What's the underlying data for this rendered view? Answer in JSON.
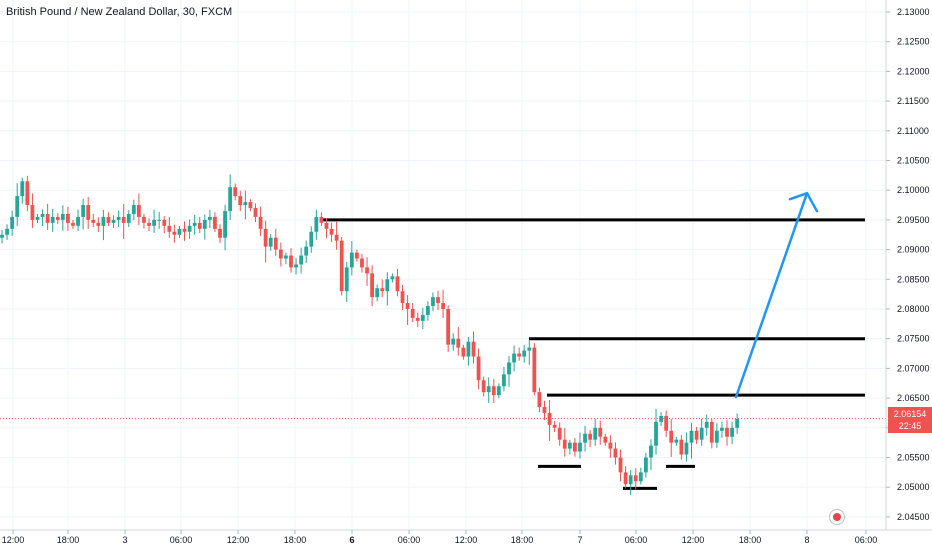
{
  "header": {
    "title": "British Pound / New Zealand Dollar, 30, FXCM"
  },
  "price_badge": {
    "price": "2.06154",
    "countdown": "22:45"
  },
  "colors": {
    "up": "#26a69a",
    "down": "#ef5350",
    "line": "#000000",
    "arrow": "#2196f3",
    "price_line": "#ef5350"
  },
  "chart_data": {
    "type": "candlestick",
    "symbol": "GBPNZD",
    "timeframe": "30",
    "source": "FXCM",
    "y_ticks": [
      "2.13000",
      "2.12500",
      "2.12000",
      "2.11500",
      "2.11000",
      "2.10500",
      "2.10000",
      "2.09500",
      "2.09000",
      "2.08500",
      "2.08000",
      "2.07500",
      "2.07000",
      "2.06500",
      "2.06000",
      "2.05500",
      "2.05000",
      "2.04500"
    ],
    "ylim": [
      2.043,
      2.133
    ],
    "x_ticks": [
      {
        "label": "12:00",
        "bold": false
      },
      {
        "label": "18:00",
        "bold": false
      },
      {
        "label": "3",
        "bold": false
      },
      {
        "label": "06:00",
        "bold": false
      },
      {
        "label": "12:00",
        "bold": false
      },
      {
        "label": "18:00",
        "bold": false
      },
      {
        "label": "6",
        "bold": true
      },
      {
        "label": "06:00",
        "bold": false
      },
      {
        "label": "12:00",
        "bold": false
      },
      {
        "label": "18:00",
        "bold": false
      },
      {
        "label": "7",
        "bold": false
      },
      {
        "label": "06:00",
        "bold": false
      },
      {
        "label": "12:00",
        "bold": false
      },
      {
        "label": "18:00",
        "bold": false
      },
      {
        "label": "8",
        "bold": false
      },
      {
        "label": "06:00",
        "bold": false
      }
    ],
    "current_price": 2.06154,
    "resistance_levels": [
      2.095,
      2.075,
      2.0655
    ],
    "support_marks": [
      2.0535,
      2.0498,
      2.0535
    ],
    "projection_target": 2.0995,
    "closes": [
      2.0925,
      2.0935,
      2.0955,
      2.099,
      2.1015,
      2.0975,
      2.095,
      2.0955,
      2.096,
      2.0945,
      2.0955,
      2.095,
      2.096,
      2.0945,
      2.094,
      2.0955,
      2.0975,
      2.095,
      2.0945,
      2.094,
      2.0955,
      2.0945,
      2.095,
      2.0955,
      2.0945,
      2.096,
      2.0975,
      2.0955,
      2.0945,
      2.094,
      2.095,
      2.095,
      2.094,
      2.093,
      2.0925,
      2.0935,
      2.093,
      2.094,
      2.0945,
      2.0935,
      2.095,
      2.0955,
      2.0935,
      2.092,
      2.0965,
      2.1005,
      2.099,
      2.0975,
      2.098,
      2.097,
      2.0955,
      2.0935,
      2.0905,
      2.092,
      2.09,
      2.0885,
      2.089,
      2.087,
      2.0875,
      2.089,
      2.0905,
      2.093,
      2.0955,
      2.0945,
      2.0935,
      2.0925,
      2.0915,
      2.083,
      2.087,
      2.0895,
      2.0885,
      2.087,
      2.086,
      2.082,
      2.0835,
      2.083,
      2.085,
      2.0855,
      2.083,
      2.081,
      2.08,
      2.0785,
      2.078,
      2.079,
      2.0805,
      2.082,
      2.081,
      2.08,
      2.074,
      2.075,
      2.0735,
      2.072,
      2.0745,
      2.072,
      2.068,
      2.066,
      2.067,
      2.0655,
      2.067,
      2.069,
      2.071,
      2.0725,
      2.072,
      2.073,
      2.0735,
      2.066,
      2.0635,
      2.0625,
      2.0605,
      2.06,
      2.058,
      2.0565,
      2.0575,
      2.056,
      2.0575,
      2.059,
      2.058,
      2.06,
      2.0585,
      2.0575,
      2.0565,
      2.055,
      2.0525,
      2.0505,
      2.052,
      2.051,
      2.0525,
      2.055,
      2.057,
      2.061,
      2.062,
      2.0595,
      2.0575,
      2.058,
      2.0555,
      2.0575,
      2.0595,
      2.058,
      2.06,
      2.061,
      2.0575,
      2.0595,
      2.06,
      2.0585,
      2.06,
      2.0615
    ]
  }
}
